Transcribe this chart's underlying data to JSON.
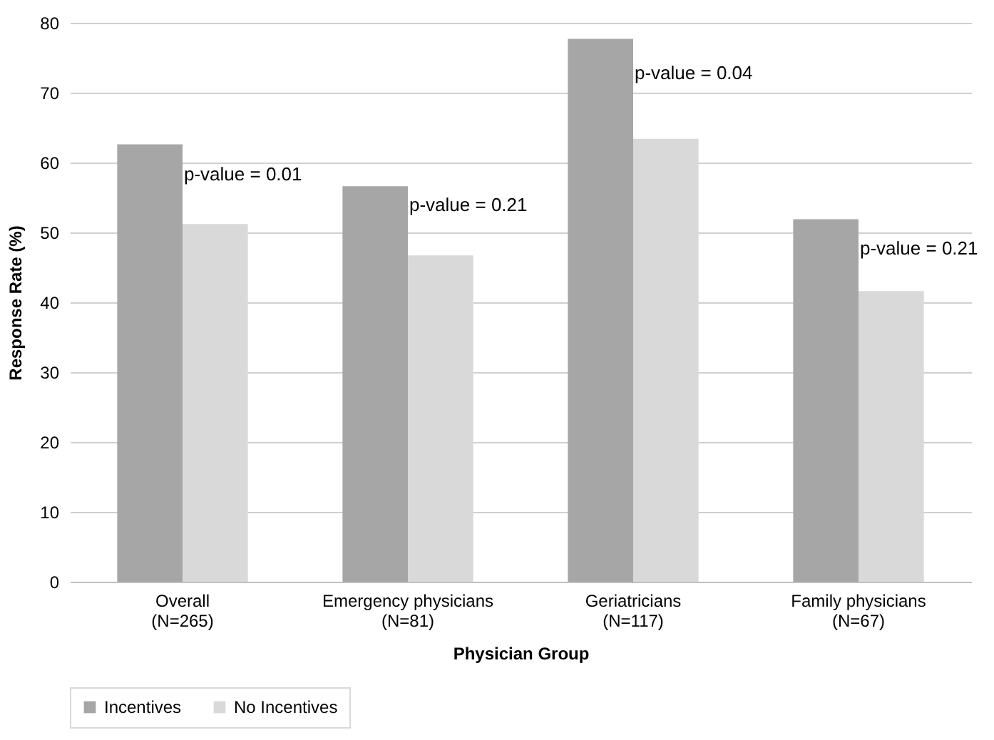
{
  "chart_data": {
    "type": "bar",
    "xlabel": "Physician Group",
    "ylabel": "Response Rate (%)",
    "categories": [
      "Overall\n(N=265)",
      "Emergency physicians\n(N=81)",
      "Geriatricians\n(N=117)",
      "Family physicians\n(N=67)"
    ],
    "series": [
      {
        "name": "Incentives",
        "color": "#a6a6a6",
        "values": [
          62.6,
          56.6,
          77.7,
          51.9
        ]
      },
      {
        "name": "No Incentives",
        "color": "#d9d9d9",
        "values": [
          51.2,
          46.7,
          63.4,
          41.6
        ]
      }
    ],
    "ylim": [
      0,
      80
    ],
    "yticks": [
      0,
      10,
      20,
      30,
      40,
      50,
      60,
      70,
      80
    ],
    "grid": "y",
    "legend": "bottom",
    "annotations": [
      {
        "text": "p-value = 0.01",
        "x": "Overall\n(N=265)",
        "y": 58.3
      },
      {
        "text": "p-value = 0.21",
        "x": "Emergency physicians\n(N=81)",
        "y": 53.9
      },
      {
        "text": "p-value = 0.04",
        "x": "Geriatricians\n(N=117)",
        "y": 72.8
      },
      {
        "text": "p-value = 0.21",
        "x": "Family physicians\n(N=67)",
        "y": 47.7
      }
    ]
  }
}
